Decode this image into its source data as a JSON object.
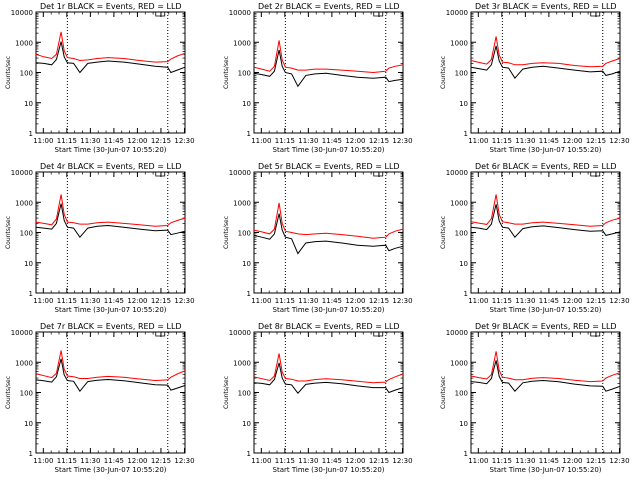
{
  "figure": {
    "title_suffix": " BLACK = Events, RED = LLD",
    "xlabel": "Start Time (30-Jun-07 10:55:20)",
    "ylabel": "Counts/sec",
    "xtick_labels": [
      "11:00",
      "11:15",
      "11:30",
      "11:45",
      "12:00",
      "12:15",
      "12:30"
    ],
    "ytick_labels": [
      "1",
      "10",
      "100",
      "1000",
      "10000"
    ],
    "colors": {
      "events": "#000000",
      "lld": "#ff0000",
      "axes": "#000000"
    }
  },
  "chart_data": [
    {
      "type": "line",
      "panel": "Det 1r",
      "title": "Det 1r BLACK = Events, RED = LLD",
      "xlabel": "Start Time (30-Jun-07 10:55:20)",
      "ylabel": "Counts/sec",
      "xlim_min": [
        0,
        95
      ],
      "ylim": [
        1,
        10000
      ],
      "yscale": "log",
      "vlines_min": [
        20,
        84
      ],
      "x_min": [
        0,
        5,
        10,
        13,
        16,
        18,
        20,
        24,
        28,
        33,
        39,
        46,
        56,
        66,
        76,
        84,
        86,
        90,
        95
      ],
      "series": [
        {
          "name": "BLACK = Events",
          "values": [
            210,
            200,
            180,
            270,
            1050,
            330,
            210,
            200,
            100,
            200,
            220,
            240,
            220,
            190,
            160,
            150,
            100,
            120,
            150
          ]
        },
        {
          "name": "RED = LLD",
          "values": [
            400,
            330,
            290,
            400,
            2200,
            520,
            310,
            290,
            250,
            260,
            290,
            310,
            290,
            250,
            220,
            230,
            280,
            350,
            430
          ]
        }
      ]
    },
    {
      "type": "line",
      "panel": "Det 2r",
      "title": "Det 2r BLACK = Events, RED = LLD",
      "xlabel": "Start Time (30-Jun-07 10:55:20)",
      "ylabel": "Counts/sec",
      "xlim_min": [
        0,
        95
      ],
      "ylim": [
        1,
        10000
      ],
      "yscale": "log",
      "vlines_min": [
        20,
        84
      ],
      "x_min": [
        0,
        5,
        10,
        13,
        16,
        18,
        20,
        24,
        28,
        33,
        39,
        46,
        56,
        66,
        76,
        84,
        86,
        90,
        95
      ],
      "series": [
        {
          "name": "BLACK = Events",
          "values": [
            95,
            85,
            75,
            110,
            560,
            160,
            100,
            90,
            35,
            80,
            90,
            95,
            80,
            70,
            65,
            70,
            50,
            55,
            60
          ]
        },
        {
          "name": "RED = LLD",
          "values": [
            150,
            130,
            110,
            160,
            1150,
            260,
            150,
            140,
            120,
            120,
            130,
            130,
            120,
            110,
            100,
            110,
            140,
            160,
            180
          ]
        }
      ]
    },
    {
      "type": "line",
      "panel": "Det 3r",
      "title": "Det 3r BLACK = Events, RED = LLD",
      "xlabel": "Start Time (30-Jun-07 10:55:20)",
      "ylabel": "Counts/sec",
      "xlim_min": [
        0,
        95
      ],
      "ylim": [
        1,
        10000
      ],
      "yscale": "log",
      "vlines_min": [
        20,
        84
      ],
      "x_min": [
        0,
        5,
        10,
        13,
        16,
        18,
        20,
        24,
        28,
        33,
        39,
        46,
        56,
        66,
        76,
        84,
        86,
        90,
        95
      ],
      "series": [
        {
          "name": "BLACK = Events",
          "values": [
            150,
            135,
            120,
            180,
            760,
            240,
            150,
            140,
            65,
            130,
            150,
            160,
            140,
            120,
            105,
            110,
            80,
            90,
            110
          ]
        },
        {
          "name": "RED = LLD",
          "values": [
            250,
            215,
            190,
            270,
            1550,
            380,
            220,
            210,
            180,
            180,
            200,
            210,
            200,
            170,
            155,
            160,
            200,
            240,
            290
          ]
        }
      ]
    },
    {
      "type": "line",
      "panel": "Det 4r",
      "title": "Det 4r BLACK = Events, RED = LLD",
      "xlabel": "Start Time (30-Jun-07 10:55:20)",
      "ylabel": "Counts/sec",
      "xlim_min": [
        0,
        95
      ],
      "ylim": [
        1,
        10000
      ],
      "yscale": "log",
      "vlines_min": [
        20,
        84
      ],
      "x_min": [
        0,
        5,
        10,
        13,
        16,
        18,
        20,
        24,
        28,
        33,
        39,
        46,
        56,
        66,
        76,
        84,
        86,
        90,
        95
      ],
      "series": [
        {
          "name": "BLACK = Events",
          "values": [
            150,
            140,
            130,
            200,
            900,
            250,
            150,
            140,
            70,
            140,
            160,
            170,
            150,
            130,
            115,
            120,
            85,
            95,
            110
          ]
        },
        {
          "name": "RED = LLD",
          "values": [
            220,
            200,
            180,
            280,
            1800,
            400,
            220,
            210,
            190,
            190,
            210,
            220,
            200,
            180,
            160,
            170,
            210,
            250,
            300
          ]
        }
      ]
    },
    {
      "type": "line",
      "panel": "Det 5r",
      "title": "Det 5r BLACK = Events, RED = LLD",
      "xlabel": "Start Time (30-Jun-07 10:55:20)",
      "ylabel": "Counts/sec",
      "xlim_min": [
        0,
        95
      ],
      "ylim": [
        1,
        10000
      ],
      "yscale": "log",
      "vlines_min": [
        20,
        84
      ],
      "x_min": [
        0,
        5,
        10,
        13,
        16,
        18,
        20,
        24,
        28,
        33,
        39,
        46,
        56,
        66,
        76,
        84,
        86,
        90,
        95
      ],
      "series": [
        {
          "name": "BLACK = Events",
          "values": [
            80,
            70,
            60,
            90,
            420,
            120,
            70,
            62,
            20,
            45,
            50,
            52,
            45,
            38,
            35,
            38,
            25,
            30,
            35
          ]
        },
        {
          "name": "RED = LLD",
          "values": [
            120,
            105,
            90,
            130,
            950,
            200,
            110,
            100,
            90,
            85,
            90,
            95,
            85,
            75,
            65,
            70,
            90,
            110,
            130
          ]
        }
      ]
    },
    {
      "type": "line",
      "panel": "Det 6r",
      "title": "Det 6r BLACK = Events, RED = LLD",
      "xlabel": "Start Time (30-Jun-07 10:55:20)",
      "ylabel": "Counts/sec",
      "xlim_min": [
        0,
        95
      ],
      "ylim": [
        1,
        10000
      ],
      "yscale": "log",
      "vlines_min": [
        20,
        84
      ],
      "x_min": [
        0,
        5,
        10,
        13,
        16,
        18,
        20,
        24,
        28,
        33,
        39,
        46,
        56,
        66,
        76,
        84,
        86,
        90,
        95
      ],
      "series": [
        {
          "name": "BLACK = Events",
          "values": [
            150,
            140,
            125,
            190,
            860,
            240,
            150,
            140,
            70,
            135,
            155,
            165,
            145,
            125,
            110,
            115,
            80,
            90,
            105
          ]
        },
        {
          "name": "RED = LLD",
          "values": [
            230,
            205,
            185,
            285,
            1800,
            400,
            225,
            210,
            190,
            190,
            210,
            220,
            200,
            180,
            160,
            170,
            210,
            255,
            300
          ]
        }
      ]
    },
    {
      "type": "line",
      "panel": "Det 7r",
      "title": "Det 7r BLACK = Events, RED = LLD",
      "xlabel": "Start Time (30-Jun-07 10:55:20)",
      "ylabel": "Counts/sec",
      "xlim_min": [
        0,
        95
      ],
      "ylim": [
        1,
        10000
      ],
      "yscale": "log",
      "vlines_min": [
        20,
        84
      ],
      "x_min": [
        0,
        5,
        10,
        13,
        16,
        18,
        20,
        24,
        28,
        33,
        39,
        46,
        56,
        66,
        76,
        84,
        86,
        90,
        95
      ],
      "series": [
        {
          "name": "BLACK = Events",
          "values": [
            260,
            245,
            220,
            330,
            1300,
            380,
            250,
            235,
            110,
            230,
            255,
            270,
            245,
            210,
            180,
            175,
            120,
            140,
            170
          ]
        },
        {
          "name": "RED = LLD",
          "values": [
            420,
            360,
            310,
            430,
            2450,
            580,
            350,
            330,
            290,
            290,
            320,
            340,
            320,
            280,
            250,
            260,
            320,
            410,
            520
          ]
        }
      ]
    },
    {
      "type": "line",
      "panel": "Det 8r",
      "title": "Det 8r BLACK = Events, RED = LLD",
      "xlabel": "Start Time (30-Jun-07 10:55:20)",
      "ylabel": "Counts/sec",
      "xlim_min": [
        0,
        95
      ],
      "ylim": [
        1,
        10000
      ],
      "yscale": "log",
      "vlines_min": [
        20,
        84
      ],
      "x_min": [
        0,
        5,
        10,
        13,
        16,
        18,
        20,
        24,
        28,
        33,
        39,
        46,
        56,
        66,
        76,
        84,
        86,
        90,
        95
      ],
      "series": [
        {
          "name": "BLACK = Events",
          "values": [
            210,
            200,
            180,
            270,
            950,
            300,
            190,
            180,
            95,
            185,
            205,
            215,
            195,
            165,
            145,
            145,
            100,
            120,
            145
          ]
        },
        {
          "name": "RED = LLD",
          "values": [
            330,
            285,
            250,
            350,
            1950,
            470,
            290,
            275,
            240,
            240,
            270,
            285,
            265,
            235,
            210,
            220,
            270,
            330,
            410
          ]
        }
      ]
    },
    {
      "type": "line",
      "panel": "Det 9r",
      "title": "Det 9r BLACK = Events, RED = LLD",
      "xlabel": "Start Time (30-Jun-07 10:55:20)",
      "ylabel": "Counts/sec",
      "xlim_min": [
        0,
        95
      ],
      "ylim": [
        1,
        10000
      ],
      "yscale": "log",
      "vlines_min": [
        20,
        84
      ],
      "x_min": [
        0,
        5,
        10,
        13,
        16,
        18,
        20,
        24,
        28,
        33,
        39,
        46,
        56,
        66,
        76,
        84,
        86,
        90,
        95
      ],
      "series": [
        {
          "name": "BLACK = Events",
          "values": [
            230,
            215,
            195,
            290,
            1150,
            340,
            215,
            205,
            110,
            210,
            235,
            250,
            225,
            190,
            165,
            160,
            110,
            130,
            160
          ]
        },
        {
          "name": "RED = LLD",
          "values": [
            350,
            310,
            280,
            390,
            2300,
            540,
            320,
            300,
            265,
            265,
            295,
            310,
            290,
            255,
            230,
            240,
            300,
            370,
            450
          ]
        }
      ]
    }
  ]
}
